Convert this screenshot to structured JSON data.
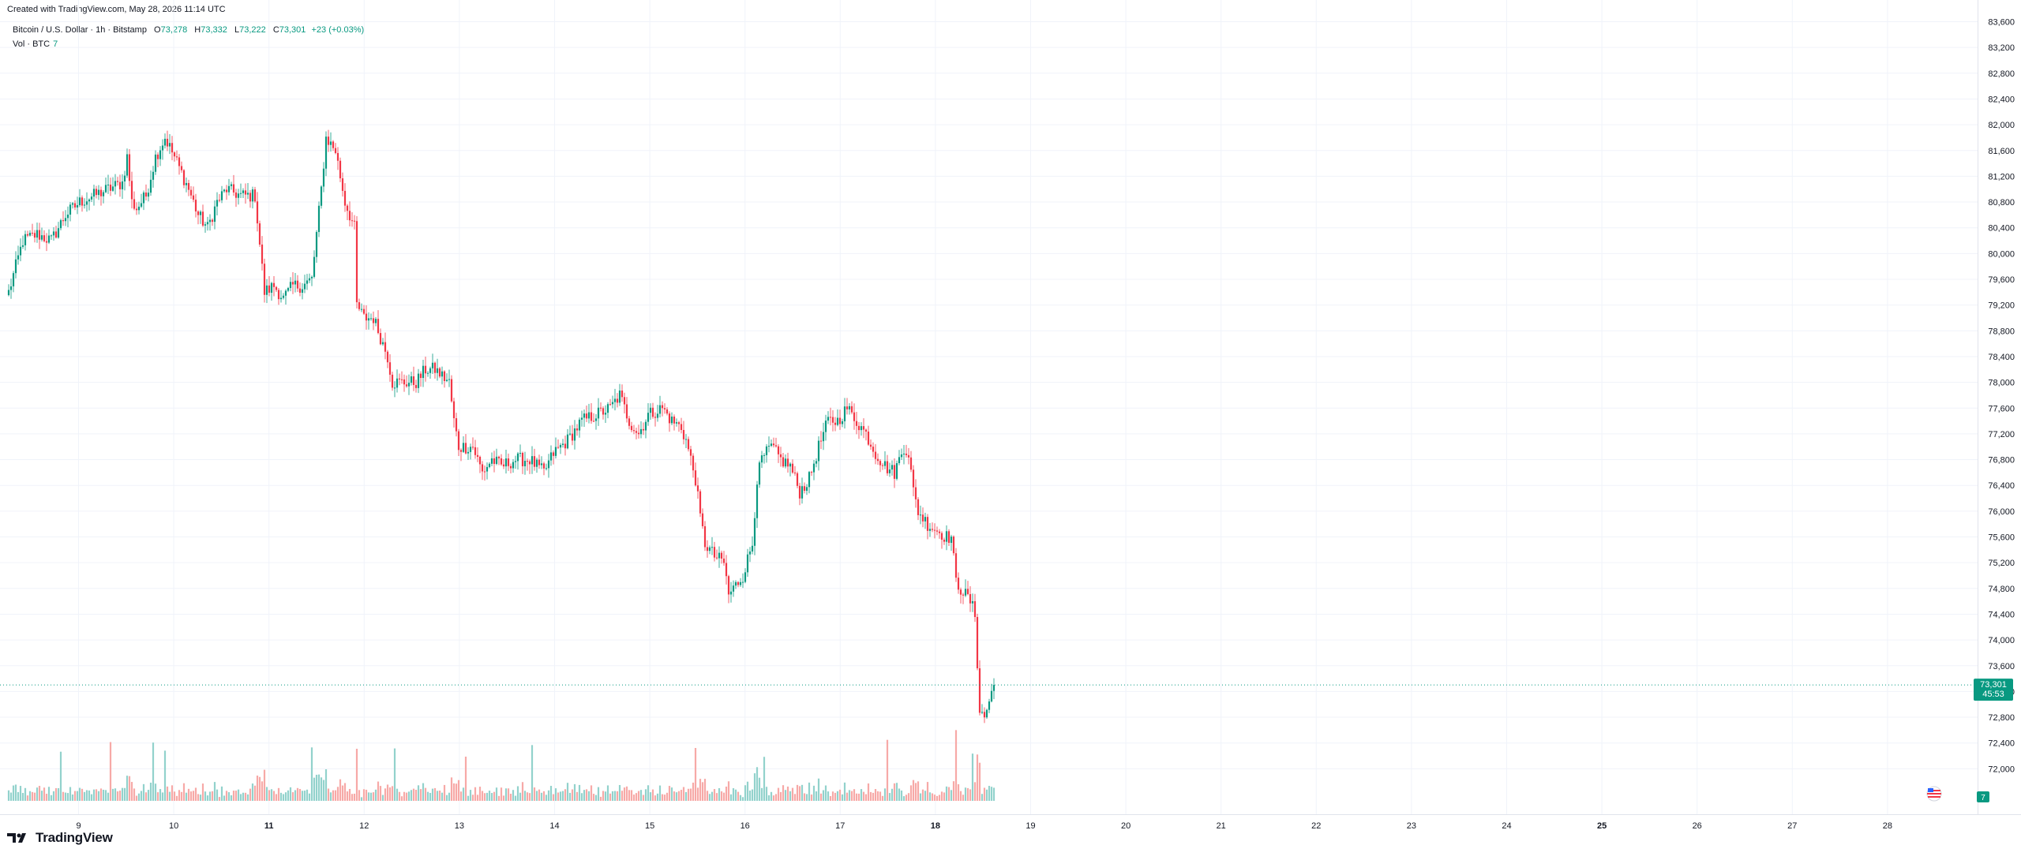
{
  "header": {
    "created_text": "Created with TradingView.com, May 28, 2026 11:14 UTC",
    "symbol": "Bitcoin / U.S. Dollar · 1h · Bitstamp",
    "o_label": "O",
    "o_value": "73,278",
    "h_label": "H",
    "h_value": "73,332",
    "l_label": "L",
    "l_value": "73,222",
    "c_label": "C",
    "c_value": "73,301",
    "change": "+23 (+0.03%)",
    "vol_label": "Vol · BTC",
    "vol_value": "7"
  },
  "price_tag": {
    "price": "73,301",
    "countdown": "45:53"
  },
  "volume_tag": "7",
  "brand": {
    "name": "TradingView"
  },
  "colors": {
    "up": "#089981",
    "down": "#f23645",
    "up_volume": "#92d2cc",
    "down_volume": "#f7a9a7",
    "grid": "#f0f3fa",
    "price_line": "#089981"
  },
  "chart_data": {
    "type": "candlestick",
    "interval": "1h",
    "ylim": [
      71600,
      83600
    ],
    "y_ticks": [
      72000,
      72400,
      72800,
      73200,
      73600,
      74000,
      74400,
      74800,
      75200,
      75600,
      76000,
      76400,
      76800,
      77200,
      77600,
      78000,
      78400,
      78800,
      79200,
      79600,
      80000,
      80400,
      80800,
      81200,
      81600,
      82000,
      82400,
      82800,
      83200,
      83600
    ],
    "x_ticks": [
      {
        "label": "9",
        "bold": false
      },
      {
        "label": "10",
        "bold": false
      },
      {
        "label": "11",
        "bold": true
      },
      {
        "label": "12",
        "bold": false
      },
      {
        "label": "13",
        "bold": false
      },
      {
        "label": "14",
        "bold": false
      },
      {
        "label": "15",
        "bold": false
      },
      {
        "label": "16",
        "bold": false
      },
      {
        "label": "17",
        "bold": false
      },
      {
        "label": "18",
        "bold": true
      },
      {
        "label": "19",
        "bold": false
      },
      {
        "label": "20",
        "bold": false
      },
      {
        "label": "21",
        "bold": false
      },
      {
        "label": "22",
        "bold": false
      },
      {
        "label": "23",
        "bold": false
      },
      {
        "label": "24",
        "bold": false
      },
      {
        "label": "25",
        "bold": true
      },
      {
        "label": "26",
        "bold": false
      },
      {
        "label": "27",
        "bold": false
      },
      {
        "label": "28",
        "bold": false
      }
    ],
    "first_bar_hours_before_day9": 20,
    "last_price": 73301,
    "close_path": [
      [
        0,
        79400
      ],
      [
        3,
        79800
      ],
      [
        6,
        80200
      ],
      [
        12,
        80300
      ],
      [
        18,
        80200
      ],
      [
        24,
        80600
      ],
      [
        30,
        80800
      ],
      [
        36,
        80900
      ],
      [
        42,
        81000
      ],
      [
        48,
        81100
      ],
      [
        50,
        81500
      ],
      [
        52,
        80800
      ],
      [
        54,
        80700
      ],
      [
        58,
        80900
      ],
      [
        62,
        81500
      ],
      [
        66,
        81800
      ],
      [
        70,
        81500
      ],
      [
        76,
        81000
      ],
      [
        80,
        80600
      ],
      [
        84,
        80400
      ],
      [
        88,
        80800
      ],
      [
        92,
        81000
      ],
      [
        98,
        80900
      ],
      [
        104,
        80900
      ],
      [
        108,
        79400
      ],
      [
        112,
        79500
      ],
      [
        116,
        79300
      ],
      [
        120,
        79500
      ],
      [
        124,
        79500
      ],
      [
        128,
        79600
      ],
      [
        132,
        81000
      ],
      [
        134,
        81800
      ],
      [
        138,
        81600
      ],
      [
        142,
        80800
      ],
      [
        146,
        80400
      ],
      [
        147,
        79200
      ],
      [
        150,
        79000
      ],
      [
        154,
        79000
      ],
      [
        156,
        78800
      ],
      [
        160,
        78400
      ],
      [
        162,
        78000
      ],
      [
        166,
        78000
      ],
      [
        172,
        78000
      ],
      [
        176,
        78200
      ],
      [
        180,
        78200
      ],
      [
        186,
        78000
      ],
      [
        188,
        77400
      ],
      [
        190,
        77000
      ],
      [
        194,
        77000
      ],
      [
        196,
        77000
      ],
      [
        200,
        76600
      ],
      [
        204,
        76800
      ],
      [
        208,
        76700
      ],
      [
        214,
        76800
      ],
      [
        220,
        76800
      ],
      [
        226,
        76600
      ],
      [
        230,
        76900
      ],
      [
        236,
        77100
      ],
      [
        242,
        77400
      ],
      [
        248,
        77500
      ],
      [
        254,
        77600
      ],
      [
        258,
        77800
      ],
      [
        262,
        77400
      ],
      [
        266,
        77200
      ],
      [
        270,
        77500
      ],
      [
        276,
        77600
      ],
      [
        280,
        77400
      ],
      [
        284,
        77300
      ],
      [
        286,
        77100
      ],
      [
        290,
        76500
      ],
      [
        292,
        75900
      ],
      [
        294,
        75500
      ],
      [
        298,
        75300
      ],
      [
        302,
        75200
      ],
      [
        304,
        74700
      ],
      [
        306,
        74800
      ],
      [
        310,
        75000
      ],
      [
        314,
        75500
      ],
      [
        316,
        76500
      ],
      [
        318,
        76800
      ],
      [
        322,
        77000
      ],
      [
        326,
        76800
      ],
      [
        330,
        76700
      ],
      [
        334,
        76300
      ],
      [
        338,
        76500
      ],
      [
        342,
        77000
      ],
      [
        346,
        77400
      ],
      [
        350,
        77400
      ],
      [
        354,
        77600
      ],
      [
        358,
        77400
      ],
      [
        362,
        77200
      ],
      [
        366,
        76900
      ],
      [
        370,
        76700
      ],
      [
        374,
        76600
      ],
      [
        378,
        77000
      ],
      [
        380,
        76900
      ],
      [
        382,
        76300
      ],
      [
        384,
        76000
      ],
      [
        388,
        75800
      ],
      [
        392,
        75700
      ],
      [
        396,
        75600
      ],
      [
        398,
        75600
      ],
      [
        400,
        74900
      ],
      [
        402,
        74800
      ],
      [
        406,
        74600
      ],
      [
        408,
        74400
      ],
      [
        410,
        72900
      ],
      [
        412,
        72800
      ],
      [
        416,
        73301
      ]
    ]
  }
}
